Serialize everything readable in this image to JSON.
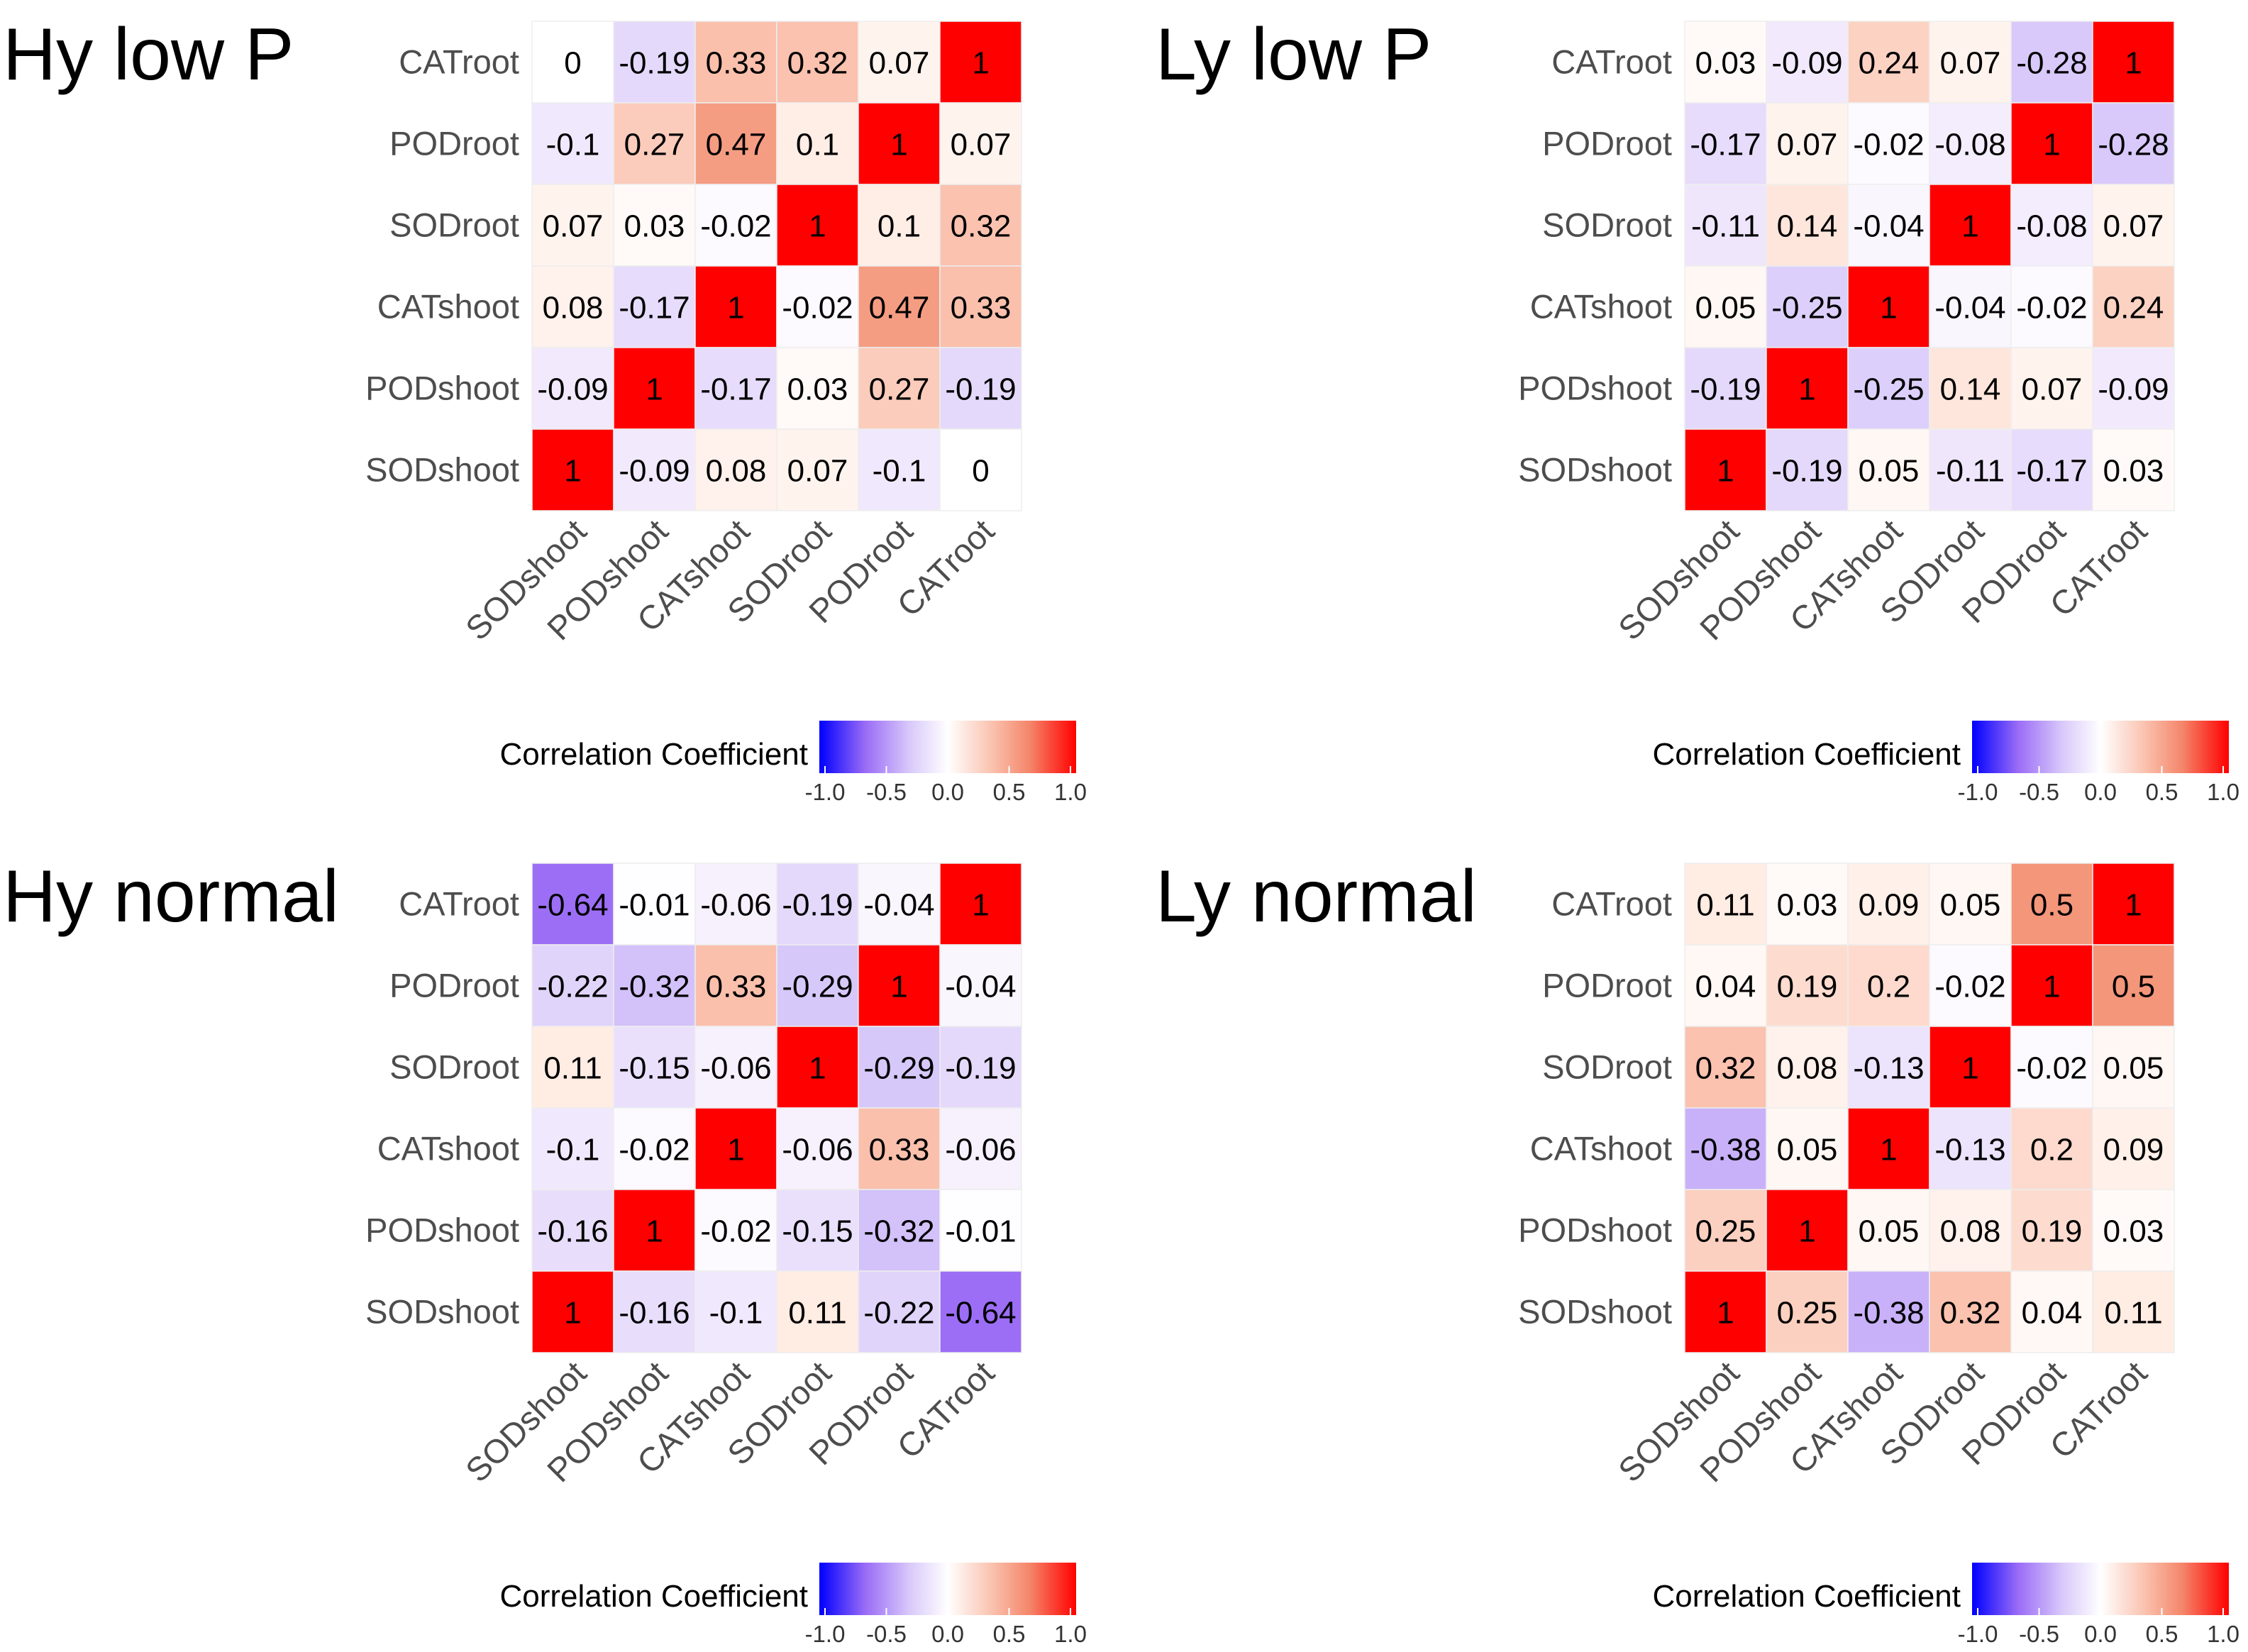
{
  "chart_data": [
    {
      "type": "heatmap",
      "title": "Hy low P",
      "rows": [
        "CATroot",
        "PODroot",
        "SODroot",
        "CATshoot",
        "PODshoot",
        "SODshoot"
      ],
      "columns": [
        "SODshoot",
        "PODshoot",
        "CATshoot",
        "SODroot",
        "PODroot",
        "CATroot"
      ],
      "values": [
        [
          0,
          -0.19,
          0.33,
          0.32,
          0.07,
          1
        ],
        [
          -0.1,
          0.27,
          0.47,
          0.1,
          1,
          0.07
        ],
        [
          0.07,
          0.03,
          -0.02,
          1,
          0.1,
          0.32
        ],
        [
          0.08,
          -0.17,
          1,
          -0.02,
          0.47,
          0.33
        ],
        [
          -0.09,
          1,
          -0.17,
          0.03,
          0.27,
          -0.19
        ],
        [
          1,
          -0.09,
          0.08,
          0.07,
          -0.1,
          0
        ]
      ],
      "legend": {
        "title": "Correlation Coefficient",
        "ticks": [
          "-1.0",
          "-0.5",
          "0.0",
          "0.5",
          "1.0"
        ],
        "range": [
          -1,
          1
        ],
        "placement": "bottom"
      }
    },
    {
      "type": "heatmap",
      "title": "Ly low P",
      "rows": [
        "CATroot",
        "PODroot",
        "SODroot",
        "CATshoot",
        "PODshoot",
        "SODshoot"
      ],
      "columns": [
        "SODshoot",
        "PODshoot",
        "CATshoot",
        "SODroot",
        "PODroot",
        "CATroot"
      ],
      "values": [
        [
          0.03,
          -0.09,
          0.24,
          0.07,
          -0.28,
          1
        ],
        [
          -0.17,
          0.07,
          -0.02,
          -0.08,
          1,
          -0.28
        ],
        [
          -0.11,
          0.14,
          -0.04,
          1,
          -0.08,
          0.07
        ],
        [
          0.05,
          -0.25,
          1,
          -0.04,
          -0.02,
          0.24
        ],
        [
          -0.19,
          1,
          -0.25,
          0.14,
          0.07,
          -0.09
        ],
        [
          1,
          -0.19,
          0.05,
          -0.11,
          -0.17,
          0.03
        ]
      ],
      "legend": {
        "title": "Correlation Coefficient",
        "ticks": [
          "-1.0",
          "-0.5",
          "0.0",
          "0.5",
          "1.0"
        ],
        "range": [
          -1,
          1
        ],
        "placement": "bottom"
      }
    },
    {
      "type": "heatmap",
      "title": "Hy normal",
      "rows": [
        "CATroot",
        "PODroot",
        "SODroot",
        "CATshoot",
        "PODshoot",
        "SODshoot"
      ],
      "columns": [
        "SODshoot",
        "PODshoot",
        "CATshoot",
        "SODroot",
        "PODroot",
        "CATroot"
      ],
      "values": [
        [
          -0.64,
          -0.01,
          -0.06,
          -0.19,
          -0.04,
          1
        ],
        [
          -0.22,
          -0.32,
          0.33,
          -0.29,
          1,
          -0.04
        ],
        [
          0.11,
          -0.15,
          -0.06,
          1,
          -0.29,
          -0.19
        ],
        [
          -0.1,
          -0.02,
          1,
          -0.06,
          0.33,
          -0.06
        ],
        [
          -0.16,
          1,
          -0.02,
          -0.15,
          -0.32,
          -0.01
        ],
        [
          1,
          -0.16,
          -0.1,
          0.11,
          -0.22,
          -0.64
        ]
      ],
      "legend": {
        "title": "Correlation Coefficient",
        "ticks": [
          "-1.0",
          "-0.5",
          "0.0",
          "0.5",
          "1.0"
        ],
        "range": [
          -1,
          1
        ],
        "placement": "bottom"
      }
    },
    {
      "type": "heatmap",
      "title": "Ly normal",
      "rows": [
        "CATroot",
        "PODroot",
        "SODroot",
        "CATshoot",
        "PODshoot",
        "SODshoot"
      ],
      "columns": [
        "SODshoot",
        "PODshoot",
        "CATshoot",
        "SODroot",
        "PODroot",
        "CATroot"
      ],
      "values": [
        [
          0.11,
          0.03,
          0.09,
          0.05,
          0.5,
          1
        ],
        [
          0.04,
          0.19,
          0.2,
          -0.02,
          1,
          0.5
        ],
        [
          0.32,
          0.08,
          -0.13,
          1,
          -0.02,
          0.05
        ],
        [
          -0.38,
          0.05,
          1,
          -0.13,
          0.2,
          0.09
        ],
        [
          0.25,
          1,
          0.05,
          0.08,
          0.19,
          0.03
        ],
        [
          1,
          0.25,
          -0.38,
          0.32,
          0.04,
          0.11
        ]
      ],
      "legend": {
        "title": "Correlation Coefficient",
        "ticks": [
          "-1.0",
          "-0.5",
          "0.0",
          "0.5",
          "1.0"
        ],
        "range": [
          -1,
          1
        ],
        "placement": "bottom"
      }
    }
  ],
  "colors": {
    "low": "#0000FF",
    "mid": "#FFFFFF",
    "high": "#FF0000"
  }
}
